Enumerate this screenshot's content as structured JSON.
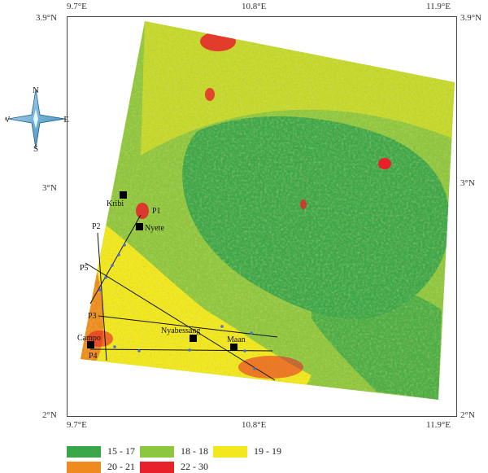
{
  "axes": {
    "top_lon": [
      "9.7°E",
      "10.8°E",
      "11.9°E"
    ],
    "bottom_lon": [
      "9.7°E",
      "10.8°E",
      "11.9°E"
    ],
    "left_lat": [
      "3.9°N",
      "3°N",
      "2°N"
    ],
    "right_lat": [
      "3.9°N",
      "3°N",
      "2°N"
    ]
  },
  "compass": {
    "n": "N",
    "s": "S",
    "e": "E",
    "w": "W"
  },
  "towns": [
    {
      "label": "Kribi"
    },
    {
      "label": "Nyete"
    },
    {
      "label": "Campo"
    },
    {
      "label": "Nyabessang"
    },
    {
      "label": "Maan"
    }
  ],
  "profiles": [
    {
      "label": "P1"
    },
    {
      "label": "P2"
    },
    {
      "label": "P3"
    },
    {
      "label": "P4"
    },
    {
      "label": "P5"
    }
  ],
  "legend": [
    {
      "label": "15 - 17",
      "color": "#3aa64a"
    },
    {
      "label": "18 - 18",
      "color": "#8dc63f"
    },
    {
      "label": "19 - 19",
      "color": "#f2e81c"
    },
    {
      "label": "20 - 21",
      "color": "#ee8a1e"
    },
    {
      "label": "22 - 30",
      "color": "#e8202a"
    }
  ]
}
